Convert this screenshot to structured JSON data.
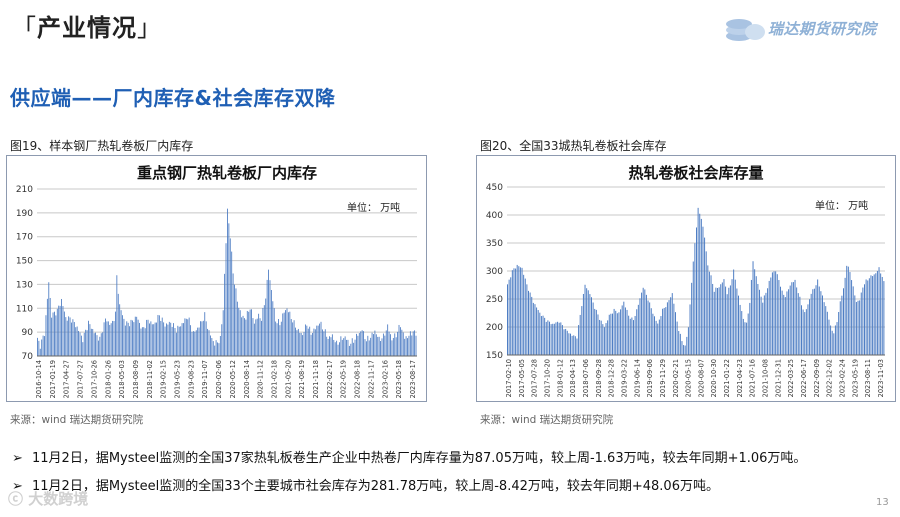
{
  "header": {
    "title": "产业情况",
    "bracket_open": "「",
    "bracket_close": "」",
    "brand": "瑞达期货研究院"
  },
  "section_title": "供应端——厂内库存&社会库存双降",
  "figures": [
    {
      "caption": "图19、样本钢厂热轧卷板厂内库存",
      "source": "来源：wind   瑞达期货研究院"
    },
    {
      "caption": "图20、全国33城热轧卷板社会库存",
      "source": "来源：wind   瑞达期货研究院"
    }
  ],
  "bullets": [
    {
      "text": "11月2日，据Mysteel监测的全国37家热轧板卷生产企业中热卷厂内库存量为87.05万吨，较上周-1.63万吨，较去年同期+1.06万吨。"
    },
    {
      "text": "11月2日，据Mysteel监测的全国33个主要城市社会库存为281.78万吨，较上周-8.42万吨，较去年同期+48.06万吨。"
    }
  ],
  "page_number": "13",
  "watermark": "大数跨境",
  "colors": {
    "bar": "#4f7ec4",
    "title_blue": "#1f5fb4",
    "grid": "#c8c8c8"
  },
  "chart_data": [
    {
      "type": "bar",
      "title": "重点钢厂热轧卷板厂内库存",
      "unit_note": "单位：  万吨",
      "ylim": [
        70,
        210
      ],
      "yticks": [
        70,
        90,
        110,
        130,
        150,
        170,
        190,
        210
      ],
      "grid": true,
      "x_labels": [
        "2016-10-14",
        "2017-01-19",
        "2017-04-27",
        "2017-07-27",
        "2017-10-26",
        "2018-01-26",
        "2018-05-03",
        "2018-08-09",
        "2018-11-02",
        "2019-02-15",
        "2019-05-23",
        "2019-08-23",
        "2019-11-07",
        "2020-02-06",
        "2020-05-12",
        "2020-08-14",
        "2020-11-12",
        "2021-02-18",
        "2021-05-20",
        "2021-08-19",
        "2021-11-18",
        "2022-02-17",
        "2022-05-19",
        "2022-08-18",
        "2022-11-17",
        "2023-02-16",
        "2023-05-18",
        "2023-08-17"
      ],
      "anchors": [
        [
          0,
          84
        ],
        [
          2,
          79
        ],
        [
          5,
          89
        ],
        [
          8,
          132
        ],
        [
          10,
          104
        ],
        [
          14,
          108
        ],
        [
          17,
          117
        ],
        [
          20,
          102
        ],
        [
          24,
          101
        ],
        [
          28,
          94
        ],
        [
          32,
          84
        ],
        [
          36,
          98
        ],
        [
          40,
          90
        ],
        [
          44,
          84
        ],
        [
          48,
          101
        ],
        [
          52,
          96
        ],
        [
          55,
          105
        ],
        [
          56,
          137
        ],
        [
          58,
          112
        ],
        [
          62,
          97
        ],
        [
          66,
          98
        ],
        [
          70,
          103
        ],
        [
          74,
          92
        ],
        [
          78,
          100
        ],
        [
          82,
          96
        ],
        [
          86,
          104
        ],
        [
          90,
          96
        ],
        [
          94,
          98
        ],
        [
          98,
          92
        ],
        [
          102,
          97
        ],
        [
          106,
          103
        ],
        [
          110,
          89
        ],
        [
          114,
          95
        ],
        [
          118,
          104
        ],
        [
          121,
          90
        ],
        [
          125,
          80
        ],
        [
          129,
          84
        ],
        [
          131,
          110
        ],
        [
          133,
          165
        ],
        [
          134,
          193
        ],
        [
          136,
          170
        ],
        [
          138,
          140
        ],
        [
          141,
          116
        ],
        [
          144,
          103
        ],
        [
          147,
          102
        ],
        [
          150,
          111
        ],
        [
          153,
          98
        ],
        [
          156,
          104
        ],
        [
          158,
          101
        ],
        [
          161,
          120
        ],
        [
          163,
          143
        ],
        [
          165,
          125
        ],
        [
          168,
          100
        ],
        [
          171,
          97
        ],
        [
          174,
          107
        ],
        [
          176,
          110
        ],
        [
          178,
          105
        ],
        [
          181,
          97
        ],
        [
          184,
          91
        ],
        [
          187,
          88
        ],
        [
          190,
          97
        ],
        [
          193,
          89
        ],
        [
          196,
          93
        ],
        [
          199,
          98
        ],
        [
          202,
          92
        ],
        [
          205,
          85
        ],
        [
          208,
          87
        ],
        [
          211,
          80
        ],
        [
          214,
          84
        ],
        [
          217,
          86
        ],
        [
          220,
          80
        ],
        [
          223,
          83
        ],
        [
          226,
          88
        ],
        [
          229,
          92
        ],
        [
          232,
          83
        ],
        [
          235,
          86
        ],
        [
          238,
          91
        ],
        [
          241,
          84
        ],
        [
          244,
          86
        ],
        [
          247,
          95
        ],
        [
          250,
          84
        ],
        [
          253,
          88
        ],
        [
          256,
          96
        ],
        [
          259,
          85
        ],
        [
          262,
          87
        ],
        [
          265,
          91
        ],
        [
          267,
          87
        ]
      ]
    },
    {
      "type": "bar",
      "title": "热轧卷板社会库存量",
      "unit_note": "单位：  万吨",
      "ylim": [
        150,
        450
      ],
      "yticks": [
        150,
        200,
        250,
        300,
        350,
        400,
        450
      ],
      "grid": true,
      "x_labels": [
        "2017-02-10",
        "2017-05-05",
        "2017-07-28",
        "2017-10-20",
        "2018-01-12",
        "2018-04-13",
        "2018-07-06",
        "2018-09-28",
        "2018-12-28",
        "2019-03-22",
        "2019-06-14",
        "2019-09-06",
        "2019-11-29",
        "2020-02-21",
        "2020-05-15",
        "2020-08-07",
        "2020-10-30",
        "2021-01-22",
        "2021-04-23",
        "2021-07-16",
        "2021-10-08",
        "2021-12-31",
        "2022-03-25",
        "2022-06-17",
        "2022-09-09",
        "2022-12-02",
        "2023-02-24",
        "2023-05-19",
        "2023-08-11",
        "2023-11-03"
      ],
      "anchors": [
        [
          0,
          275
        ],
        [
          3,
          300
        ],
        [
          6,
          310
        ],
        [
          9,
          305
        ],
        [
          12,
          275
        ],
        [
          16,
          245
        ],
        [
          20,
          225
        ],
        [
          24,
          212
        ],
        [
          28,
          205
        ],
        [
          32,
          210
        ],
        [
          36,
          195
        ],
        [
          40,
          185
        ],
        [
          43,
          182
        ],
        [
          46,
          240
        ],
        [
          48,
          275
        ],
        [
          51,
          260
        ],
        [
          54,
          235
        ],
        [
          57,
          215
        ],
        [
          60,
          200
        ],
        [
          63,
          220
        ],
        [
          66,
          230
        ],
        [
          69,
          225
        ],
        [
          72,
          245
        ],
        [
          75,
          220
        ],
        [
          78,
          212
        ],
        [
          81,
          240
        ],
        [
          84,
          272
        ],
        [
          87,
          250
        ],
        [
          90,
          225
        ],
        [
          93,
          205
        ],
        [
          96,
          230
        ],
        [
          99,
          242
        ],
        [
          102,
          260
        ],
        [
          104,
          225
        ],
        [
          106,
          195
        ],
        [
          108,
          175
        ],
        [
          110,
          165
        ],
        [
          112,
          200
        ],
        [
          114,
          280
        ],
        [
          116,
          350
        ],
        [
          118,
          410
        ],
        [
          120,
          395
        ],
        [
          122,
          360
        ],
        [
          124,
          310
        ],
        [
          126,
          290
        ],
        [
          128,
          265
        ],
        [
          130,
          270
        ],
        [
          132,
          275
        ],
        [
          134,
          285
        ],
        [
          136,
          260
        ],
        [
          138,
          275
        ],
        [
          140,
          300
        ],
        [
          142,
          270
        ],
        [
          144,
          240
        ],
        [
          146,
          215
        ],
        [
          148,
          205
        ],
        [
          150,
          245
        ],
        [
          152,
          318
        ],
        [
          154,
          290
        ],
        [
          156,
          265
        ],
        [
          158,
          245
        ],
        [
          160,
          262
        ],
        [
          162,
          280
        ],
        [
          164,
          298
        ],
        [
          166,
          300
        ],
        [
          168,
          285
        ],
        [
          170,
          262
        ],
        [
          172,
          255
        ],
        [
          174,
          268
        ],
        [
          176,
          280
        ],
        [
          178,
          282
        ],
        [
          180,
          262
        ],
        [
          182,
          240
        ],
        [
          184,
          225
        ],
        [
          186,
          240
        ],
        [
          188,
          260
        ],
        [
          190,
          270
        ],
        [
          192,
          282
        ],
        [
          194,
          265
        ],
        [
          196,
          245
        ],
        [
          198,
          228
        ],
        [
          200,
          200
        ],
        [
          202,
          190
        ],
        [
          204,
          210
        ],
        [
          206,
          245
        ],
        [
          208,
          268
        ],
        [
          210,
          310
        ],
        [
          212,
          300
        ],
        [
          214,
          270
        ],
        [
          216,
          245
        ],
        [
          218,
          248
        ],
        [
          220,
          272
        ],
        [
          222,
          282
        ],
        [
          224,
          288
        ],
        [
          226,
          292
        ],
        [
          228,
          296
        ],
        [
          230,
          305
        ],
        [
          232,
          290
        ],
        [
          233,
          282
        ]
      ]
    }
  ]
}
